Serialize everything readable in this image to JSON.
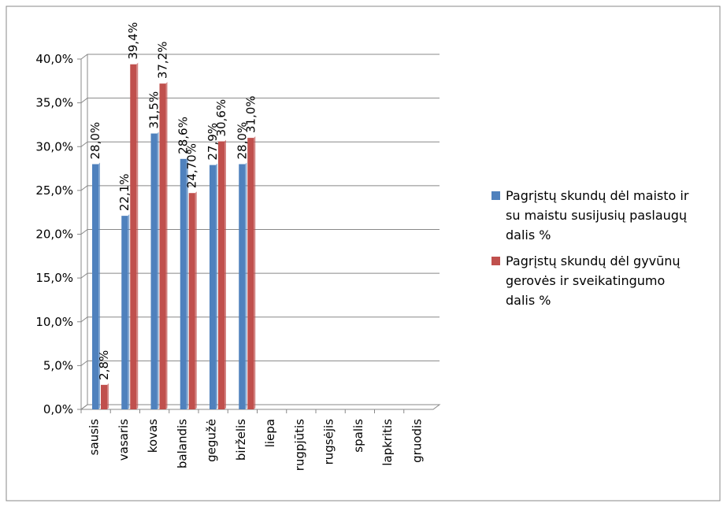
{
  "chart_data": {
    "type": "bar",
    "categories": [
      "sausis",
      "vasaris",
      "kovas",
      "balandis",
      "gegužė",
      "birželis",
      "liepa",
      "rugpjūtis",
      "rugsėjis",
      "spalis",
      "lapkritis",
      "gruodis"
    ],
    "series": [
      {
        "name": "Pagrįstų skundų dėl maisto ir su maistu susijusių paslaugų dalis %",
        "color": "#4f81bd",
        "values": [
          28.0,
          22.1,
          31.5,
          28.6,
          27.9,
          28.0,
          null,
          null,
          null,
          null,
          null,
          null
        ],
        "value_labels": [
          "28,0%",
          "22,1%",
          "31,5%",
          "28,6%",
          "27,9%",
          "28,0%",
          null,
          null,
          null,
          null,
          null,
          null
        ]
      },
      {
        "name": "Pagrįstų skundų dėl gyvūnų gerovės ir sveikatingumo dalis %",
        "color": "#c0504d",
        "values": [
          2.8,
          39.4,
          37.2,
          24.7,
          30.6,
          31.0,
          null,
          null,
          null,
          null,
          null,
          null
        ],
        "value_labels": [
          "2,8%",
          "39,4%",
          "37,2%",
          "24,70%",
          "30,6%",
          "31,0%",
          null,
          null,
          null,
          null,
          null,
          null
        ]
      }
    ],
    "ylim": [
      0,
      40
    ],
    "yticks": [
      {
        "value": 0,
        "label": "0,0%"
      },
      {
        "value": 5,
        "label": "5,0%"
      },
      {
        "value": 10,
        "label": "10,0%"
      },
      {
        "value": 15,
        "label": "15,0%"
      },
      {
        "value": 20,
        "label": "20,0%"
      },
      {
        "value": 25,
        "label": "25,0%"
      },
      {
        "value": 30,
        "label": "30,0%"
      },
      {
        "value": 35,
        "label": "35,0%"
      },
      {
        "value": 40,
        "label": "40,0%"
      }
    ],
    "grid": true,
    "legend": "right"
  }
}
